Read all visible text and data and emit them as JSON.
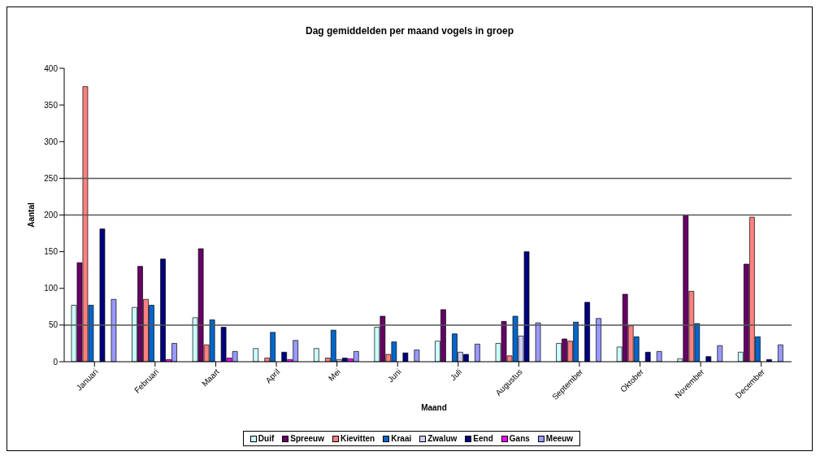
{
  "chart_data": {
    "type": "bar",
    "title": "Dag gemiddelden per maand vogels in groep",
    "xlabel": "Maand",
    "ylabel": "Aantal",
    "categories": [
      "Januari",
      "Februari",
      "Maart",
      "April",
      "Mei",
      "Juni",
      "Juli",
      "Augustus",
      "September",
      "Oktober",
      "November",
      "December"
    ],
    "series": [
      {
        "name": "Duif",
        "color": "#ccffff",
        "values": [
          77,
          74,
          60,
          18,
          18,
          47,
          28,
          25,
          25,
          20,
          4,
          13
        ]
      },
      {
        "name": "Spreeuw",
        "color": "#660066",
        "values": [
          135,
          130,
          154,
          null,
          0,
          62,
          71,
          55,
          31,
          92,
          200,
          133
        ]
      },
      {
        "name": "Kievitten",
        "color": "#ff8080",
        "values": [
          375,
          85,
          23,
          5,
          5,
          10,
          null,
          8,
          28,
          49,
          96,
          197
        ]
      },
      {
        "name": "Kraai",
        "color": "#0066cc",
        "values": [
          77,
          77,
          57,
          40,
          43,
          27,
          38,
          62,
          54,
          34,
          52,
          34
        ]
      },
      {
        "name": "Zwaluw",
        "color": "#ccccff",
        "values": [
          0,
          0,
          0,
          0,
          3,
          null,
          13,
          35,
          0,
          0,
          0,
          0
        ]
      },
      {
        "name": "Eend",
        "color": "#000080",
        "values": [
          181,
          140,
          47,
          13,
          5,
          12,
          10,
          150,
          81,
          13,
          7,
          3
        ]
      },
      {
        "name": "Gans",
        "color": "#ff00ff",
        "values": [
          0,
          3,
          5,
          3,
          4,
          0,
          0,
          null,
          0,
          0,
          0,
          0
        ]
      },
      {
        "name": "Meeuw",
        "color": "#9999ff",
        "values": [
          85,
          25,
          14,
          29,
          14,
          16,
          24,
          53,
          59,
          14,
          22,
          23
        ]
      }
    ],
    "ylim": [
      0,
      400
    ],
    "yticks": [
      0,
      50,
      100,
      150,
      200,
      250,
      300,
      350,
      400
    ],
    "ref_lines": [
      {
        "axis": "y",
        "value": 50
      },
      {
        "axis": "y",
        "value": 200
      },
      {
        "axis": "y",
        "value": 250
      }
    ],
    "legend": "bottom"
  }
}
